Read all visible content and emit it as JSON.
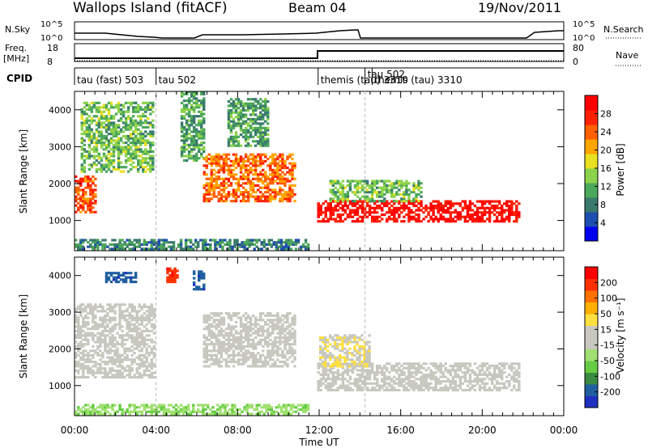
{
  "header": {
    "title": "Wallops Island (fitACF)",
    "beam": "Beam 04",
    "date": "19/Nov/2011"
  },
  "panels": {
    "nsky_label": "N.Sky",
    "nsky_ticks": [
      "10^5",
      "10^0"
    ],
    "nsearch_label": "N.Search",
    "nsearch_ticks": [
      "10^5",
      "10^0"
    ],
    "freq_label_1": "Freq.",
    "freq_label_2": "[MHz]",
    "freq_ticks": [
      "18",
      "8"
    ],
    "nave_label": "Nave",
    "nave_ticks": [
      "80",
      "0"
    ],
    "cpid_label": "CPID"
  },
  "cpid_segments": [
    {
      "label": "tau (fast) 503",
      "start": 0.0,
      "end": 4.0
    },
    {
      "label": "tau 502",
      "start": 4.0,
      "end": 11.95
    },
    {
      "label": "themis (tau) 3310",
      "start": 11.95,
      "end": 14.25
    },
    {
      "label": "tau 502",
      "start": 14.25,
      "end": 14.6
    },
    {
      "label": "themis (tau) 3310",
      "start": 14.6,
      "end": 24.0
    }
  ],
  "axes": {
    "xlabel": "Time UT",
    "xticks": [
      "00:00",
      "04:00",
      "08:00",
      "12:00",
      "16:00",
      "20:00",
      "00:00"
    ],
    "xlim_hours": [
      0,
      24
    ],
    "ylabel": "Slant Range [km]",
    "yticks": [
      "1000",
      "2000",
      "3000",
      "4000"
    ],
    "ylim_km": [
      180,
      4500
    ]
  },
  "colorbars": {
    "power": {
      "label": "Power [dB]",
      "ticks": [
        "28",
        "24",
        "20",
        "16",
        "12",
        "8",
        "4"
      ],
      "range": [
        0,
        30
      ],
      "colors": [
        "#0000ee",
        "#1d4fb0",
        "#3a7a6e",
        "#4ca85a",
        "#8cd24c",
        "#e8e020",
        "#ffa500",
        "#ff6000",
        "#ff2000",
        "#ff0000"
      ]
    },
    "velocity": {
      "label": "Velocity [m s⁻¹]",
      "ticks": [
        "200",
        "100",
        "50",
        "15",
        "-15",
        "-50",
        "-100",
        "-200"
      ],
      "range": [
        -250,
        250
      ],
      "colors": [
        "#2030c0",
        "#2060a0",
        "#3a8a40",
        "#66cc44",
        "#a0e070",
        "#c8c8c0",
        "#c8c8c0",
        "#ffe040",
        "#ffb000",
        "#ff7000",
        "#ff3000",
        "#ff0000"
      ]
    }
  },
  "chart_data": {
    "type": "heatmap",
    "x_unit": "hours UT",
    "y_unit": "km",
    "power_regions": [
      {
        "t0": 0.0,
        "t1": 1.0,
        "r0": 1200,
        "r1": 2200,
        "value": 24
      },
      {
        "t0": 0.3,
        "t1": 3.9,
        "r0": 2300,
        "r1": 4200,
        "value": 12
      },
      {
        "t0": 5.2,
        "t1": 6.4,
        "r0": 2600,
        "r1": 4500,
        "value": 10
      },
      {
        "t0": 6.3,
        "t1": 10.8,
        "r0": 1500,
        "r1": 2800,
        "value": 22
      },
      {
        "t0": 7.5,
        "t1": 9.5,
        "r0": 3000,
        "r1": 4300,
        "value": 10
      },
      {
        "t0": 11.9,
        "t1": 21.8,
        "r0": 950,
        "r1": 1500,
        "value": 28
      },
      {
        "t0": 12.5,
        "t1": 17.0,
        "r0": 1500,
        "r1": 2100,
        "value": 12
      },
      {
        "t0": 0.0,
        "t1": 11.5,
        "r0": 200,
        "r1": 500,
        "value": 8
      }
    ],
    "velocity_regions": [
      {
        "t0": 0.0,
        "t1": 3.9,
        "r0": 1200,
        "r1": 3200,
        "value": 0
      },
      {
        "t0": 6.3,
        "t1": 10.8,
        "r0": 1500,
        "r1": 3000,
        "value": 0
      },
      {
        "t0": 11.9,
        "t1": 21.8,
        "r0": 850,
        "r1": 1600,
        "value": 0
      },
      {
        "t0": 12.0,
        "t1": 14.5,
        "r0": 1500,
        "r1": 2400,
        "value": 40
      },
      {
        "t0": 0.0,
        "t1": 11.5,
        "r0": 200,
        "r1": 500,
        "value": -80
      },
      {
        "t0": 1.5,
        "t1": 3.0,
        "r0": 3800,
        "r1": 4100,
        "value": -200
      },
      {
        "t0": 4.5,
        "t1": 5.0,
        "r0": 3800,
        "r1": 4200,
        "value": 200
      },
      {
        "t0": 5.8,
        "t1": 6.3,
        "r0": 3600,
        "r1": 4100,
        "value": -200
      }
    ]
  }
}
